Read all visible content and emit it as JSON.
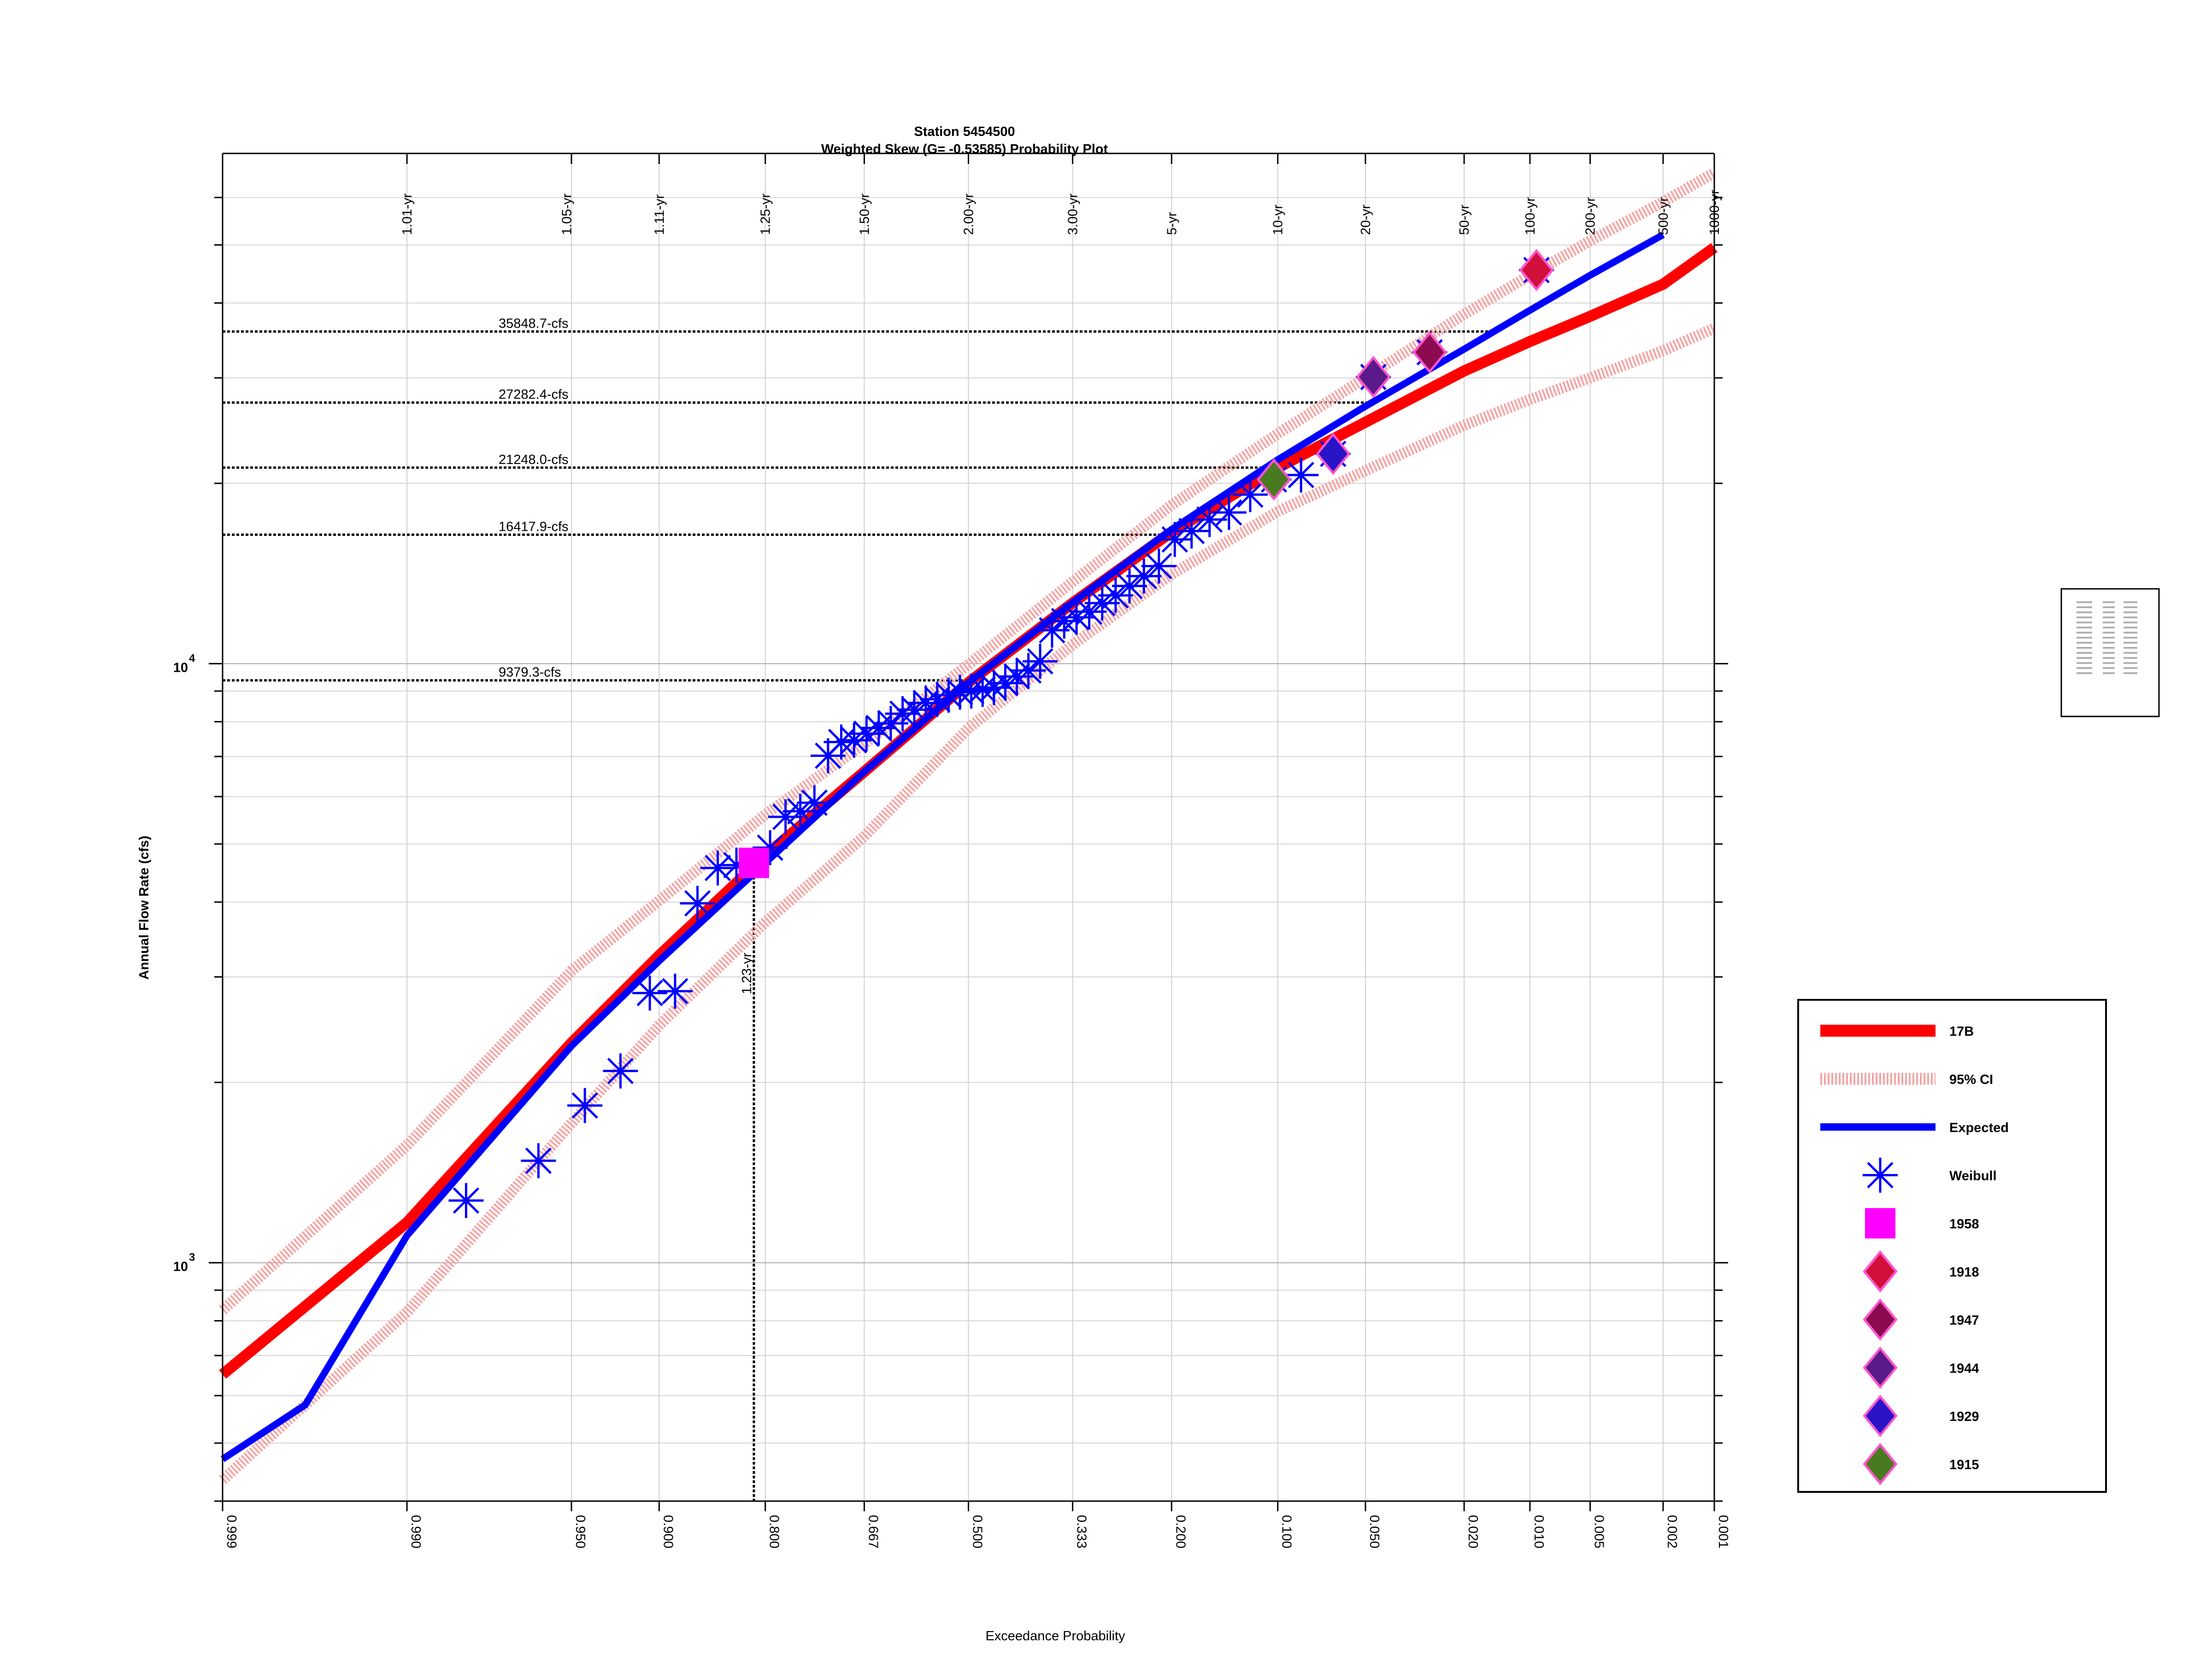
{
  "chart_data": {
    "type": "scatter",
    "title": "Station 5454500",
    "subtitle": "Weighted Skew (G= -0.53585) Probability Plot",
    "xlabel": "Exceedance Probability",
    "ylabel": "Annual Flow Rate (cfs)",
    "x_scale": "normal-probability",
    "y_scale": "log",
    "xlim": [
      0.999,
      0.001
    ],
    "ylim": [
      400,
      68000
    ],
    "grid": true,
    "legend_position": "right",
    "x_ticks": [
      "0.999",
      "0.990",
      "0.950",
      "0.900",
      "0.800",
      "0.667",
      "0.500",
      "0.333",
      "0.200",
      "0.100",
      "0.050",
      "0.020",
      "0.010",
      "0.005",
      "0.002",
      "0.001"
    ],
    "x_tick_values": [
      0.999,
      0.99,
      0.95,
      0.9,
      0.8,
      0.667,
      0.5,
      0.333,
      0.2,
      0.1,
      0.05,
      0.02,
      0.01,
      0.005,
      0.002,
      0.001
    ],
    "y_ticks": [
      {
        "value": 1000,
        "base": "10",
        "exp": "3"
      },
      {
        "value": 10000,
        "base": "10",
        "exp": "4"
      }
    ],
    "return_periods": [
      {
        "label": "1.01-yr",
        "p": 0.99
      },
      {
        "label": "1.05-yr",
        "p": 0.952
      },
      {
        "label": "1.11-yr",
        "p": 0.9
      },
      {
        "label": "1.25-yr",
        "p": 0.8
      },
      {
        "label": "1.50-yr",
        "p": 0.667
      },
      {
        "label": "2.00-yr",
        "p": 0.5
      },
      {
        "label": "3.00-yr",
        "p": 0.333
      },
      {
        "label": "5-yr",
        "p": 0.2
      },
      {
        "label": "10-yr",
        "p": 0.1
      },
      {
        "label": "20-yr",
        "p": 0.05
      },
      {
        "label": "50-yr",
        "p": 0.02
      },
      {
        "label": "100-yr",
        "p": 0.01
      },
      {
        "label": "200-yr",
        "p": 0.005
      },
      {
        "label": "500-yr",
        "p": 0.002
      },
      {
        "label": "1000-yr",
        "p": 0.001
      }
    ],
    "reference_lines": [
      {
        "label": "35848.7-cfs",
        "value": 35848.7
      },
      {
        "label": "27282.4-cfs",
        "value": 27282.4
      },
      {
        "label": "21248.0-cfs",
        "value": 21248.0
      },
      {
        "label": "16417.9-cfs",
        "value": 16417.9
      },
      {
        "label": "9379.3-cfs",
        "value": 9379.3
      }
    ],
    "vertical_reference": {
      "label": "1.23-yr",
      "p": 0.813,
      "flow": 4650
    },
    "series": [
      {
        "name": "17B",
        "kind": "line",
        "color": "#ff0000",
        "points": [
          [
            0.999,
            651
          ],
          [
            0.99,
            1167
          ],
          [
            0.95,
            2328
          ],
          [
            0.9,
            3257
          ],
          [
            0.8,
            4780
          ],
          [
            0.667,
            6600
          ],
          [
            0.5,
            9300
          ],
          [
            0.333,
            12630
          ],
          [
            0.2,
            16590
          ],
          [
            0.1,
            21240
          ],
          [
            0.05,
            25300
          ],
          [
            0.02,
            30800
          ],
          [
            0.01,
            34500
          ],
          [
            0.005,
            38000
          ],
          [
            0.002,
            43000
          ],
          [
            0.001,
            49500
          ]
        ]
      },
      {
        "name": "95% CI",
        "kind": "band",
        "color": "#f4a5a5",
        "upper": [
          [
            0.999,
            834
          ],
          [
            0.99,
            1570
          ],
          [
            0.95,
            3070
          ],
          [
            0.9,
            4020
          ],
          [
            0.8,
            5600
          ],
          [
            0.667,
            7350
          ],
          [
            0.5,
            9960
          ],
          [
            0.333,
            13700
          ],
          [
            0.2,
            18400
          ],
          [
            0.1,
            24200
          ],
          [
            0.05,
            30000
          ],
          [
            0.02,
            38300
          ],
          [
            0.01,
            44500
          ],
          [
            0.005,
            50800
          ],
          [
            0.002,
            59000
          ],
          [
            0.001,
            66000
          ]
        ],
        "lower": [
          [
            0.999,
            434
          ],
          [
            0.99,
            827
          ],
          [
            0.95,
            1710
          ],
          [
            0.9,
            2490
          ],
          [
            0.8,
            3700
          ],
          [
            0.667,
            5150
          ],
          [
            0.5,
            7800
          ],
          [
            0.333,
            10760
          ],
          [
            0.2,
            14100
          ],
          [
            0.1,
            17950
          ],
          [
            0.05,
            21000
          ],
          [
            0.02,
            25000
          ],
          [
            0.01,
            27600
          ],
          [
            0.005,
            30000
          ],
          [
            0.002,
            33300
          ],
          [
            0.001,
            36300
          ]
        ]
      },
      {
        "name": "Expected",
        "kind": "line",
        "color": "#0000ff",
        "points": [
          [
            0.999,
            470
          ],
          [
            0.997,
            579
          ],
          [
            0.99,
            1110
          ],
          [
            0.95,
            2300
          ],
          [
            0.9,
            3190
          ],
          [
            0.8,
            4650
          ],
          [
            0.667,
            6600
          ],
          [
            0.5,
            9300
          ],
          [
            0.333,
            12650
          ],
          [
            0.2,
            16750
          ],
          [
            0.1,
            21900
          ],
          [
            0.05,
            26900
          ],
          [
            0.02,
            33500
          ],
          [
            0.01,
            38900
          ],
          [
            0.005,
            44500
          ],
          [
            0.002,
            52000
          ]
        ]
      },
      {
        "name": "Weibull",
        "kind": "scatter",
        "color": "#0000ff",
        "points": [
          [
            0.9813,
            1270
          ],
          [
            0.9626,
            1480
          ],
          [
            0.944,
            1830
          ],
          [
            0.9253,
            2090
          ],
          [
            0.9066,
            2820
          ],
          [
            0.8879,
            2840
          ],
          [
            0.8692,
            3980
          ],
          [
            0.8505,
            4560
          ],
          [
            0.8318,
            4610
          ],
          [
            0.7944,
            4930
          ],
          [
            0.7757,
            5550
          ],
          [
            0.757,
            5670
          ],
          [
            0.7383,
            5860
          ],
          [
            0.7196,
            7020
          ],
          [
            0.7009,
            7400
          ],
          [
            0.6822,
            7450
          ],
          [
            0.6636,
            7640
          ],
          [
            0.6449,
            7810
          ],
          [
            0.6262,
            7950
          ],
          [
            0.6075,
            8250
          ],
          [
            0.5888,
            8380
          ],
          [
            0.5701,
            8600
          ],
          [
            0.5514,
            8720
          ],
          [
            0.5327,
            8860
          ],
          [
            0.514,
            8960
          ],
          [
            0.4953,
            9000
          ],
          [
            0.4766,
            9060
          ],
          [
            0.4579,
            9120
          ],
          [
            0.4393,
            9280
          ],
          [
            0.4206,
            9520
          ],
          [
            0.4019,
            9740
          ],
          [
            0.3832,
            10090
          ],
          [
            0.3645,
            11370
          ],
          [
            0.3458,
            11780
          ],
          [
            0.3271,
            11950
          ],
          [
            0.3084,
            12210
          ],
          [
            0.2897,
            12620
          ],
          [
            0.271,
            13000
          ],
          [
            0.2523,
            13480
          ],
          [
            0.2336,
            14000
          ],
          [
            0.215,
            14550
          ],
          [
            0.1963,
            16120
          ],
          [
            0.1776,
            16650
          ],
          [
            0.1589,
            17400
          ],
          [
            0.1402,
            17880
          ],
          [
            0.1215,
            19150
          ],
          [
            0.1028,
            20300
          ],
          [
            0.0841,
            20650
          ],
          [
            0.0654,
            22400
          ],
          [
            0.0467,
            30100
          ],
          [
            0.028,
            33100
          ],
          [
            0.0093,
            45400
          ]
        ]
      },
      {
        "name": "1958",
        "kind": "marker",
        "marker": "square",
        "color": "#ff00ff",
        "points": [
          [
            0.813,
            4650
          ]
        ]
      },
      {
        "name": "1918",
        "kind": "marker",
        "marker": "diamond",
        "color": "#d0103a",
        "points": [
          [
            0.0093,
            45400
          ]
        ]
      },
      {
        "name": "1947",
        "kind": "marker",
        "marker": "diamond",
        "color": "#8b0a50",
        "points": [
          [
            0.028,
            33100
          ]
        ]
      },
      {
        "name": "1944",
        "kind": "marker",
        "marker": "diamond",
        "color": "#5a1a8a",
        "points": [
          [
            0.0467,
            30100
          ]
        ]
      },
      {
        "name": "1929",
        "kind": "marker",
        "marker": "diamond",
        "color": "#2a14c8",
        "points": [
          [
            0.0654,
            22400
          ]
        ]
      },
      {
        "name": "1915",
        "kind": "marker",
        "marker": "diamond",
        "color": "#4a7a20",
        "points": [
          [
            0.1028,
            20300
          ]
        ]
      }
    ]
  }
}
